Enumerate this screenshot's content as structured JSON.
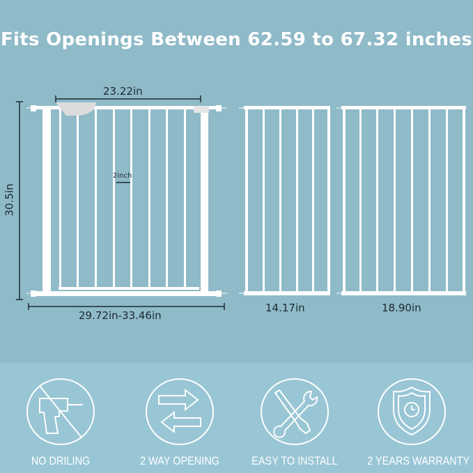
{
  "headline": "Fits Openings Between 62.59 to 67.32 inches",
  "dimensions": {
    "gate_door_width": "23.22in",
    "height": "30.5in",
    "bar_spacing": "2inch",
    "gate_width_range": "29.72in-33.46in",
    "extension_small": "14.17in",
    "extension_large": "18.90in"
  },
  "features": [
    {
      "label": "NO DRILING",
      "icon": "no-drill-icon"
    },
    {
      "label": "2 WAY OPENING",
      "icon": "two-way-arrows-icon"
    },
    {
      "label": "EASY TO INSTALL",
      "icon": "tools-icon"
    },
    {
      "label": "2 YEARS WARRANTY",
      "icon": "shield-clock-icon"
    }
  ],
  "colors": {
    "background_top": "#8fbac8",
    "background_bottom": "#98c6d4",
    "gate": "#ffffff"
  }
}
